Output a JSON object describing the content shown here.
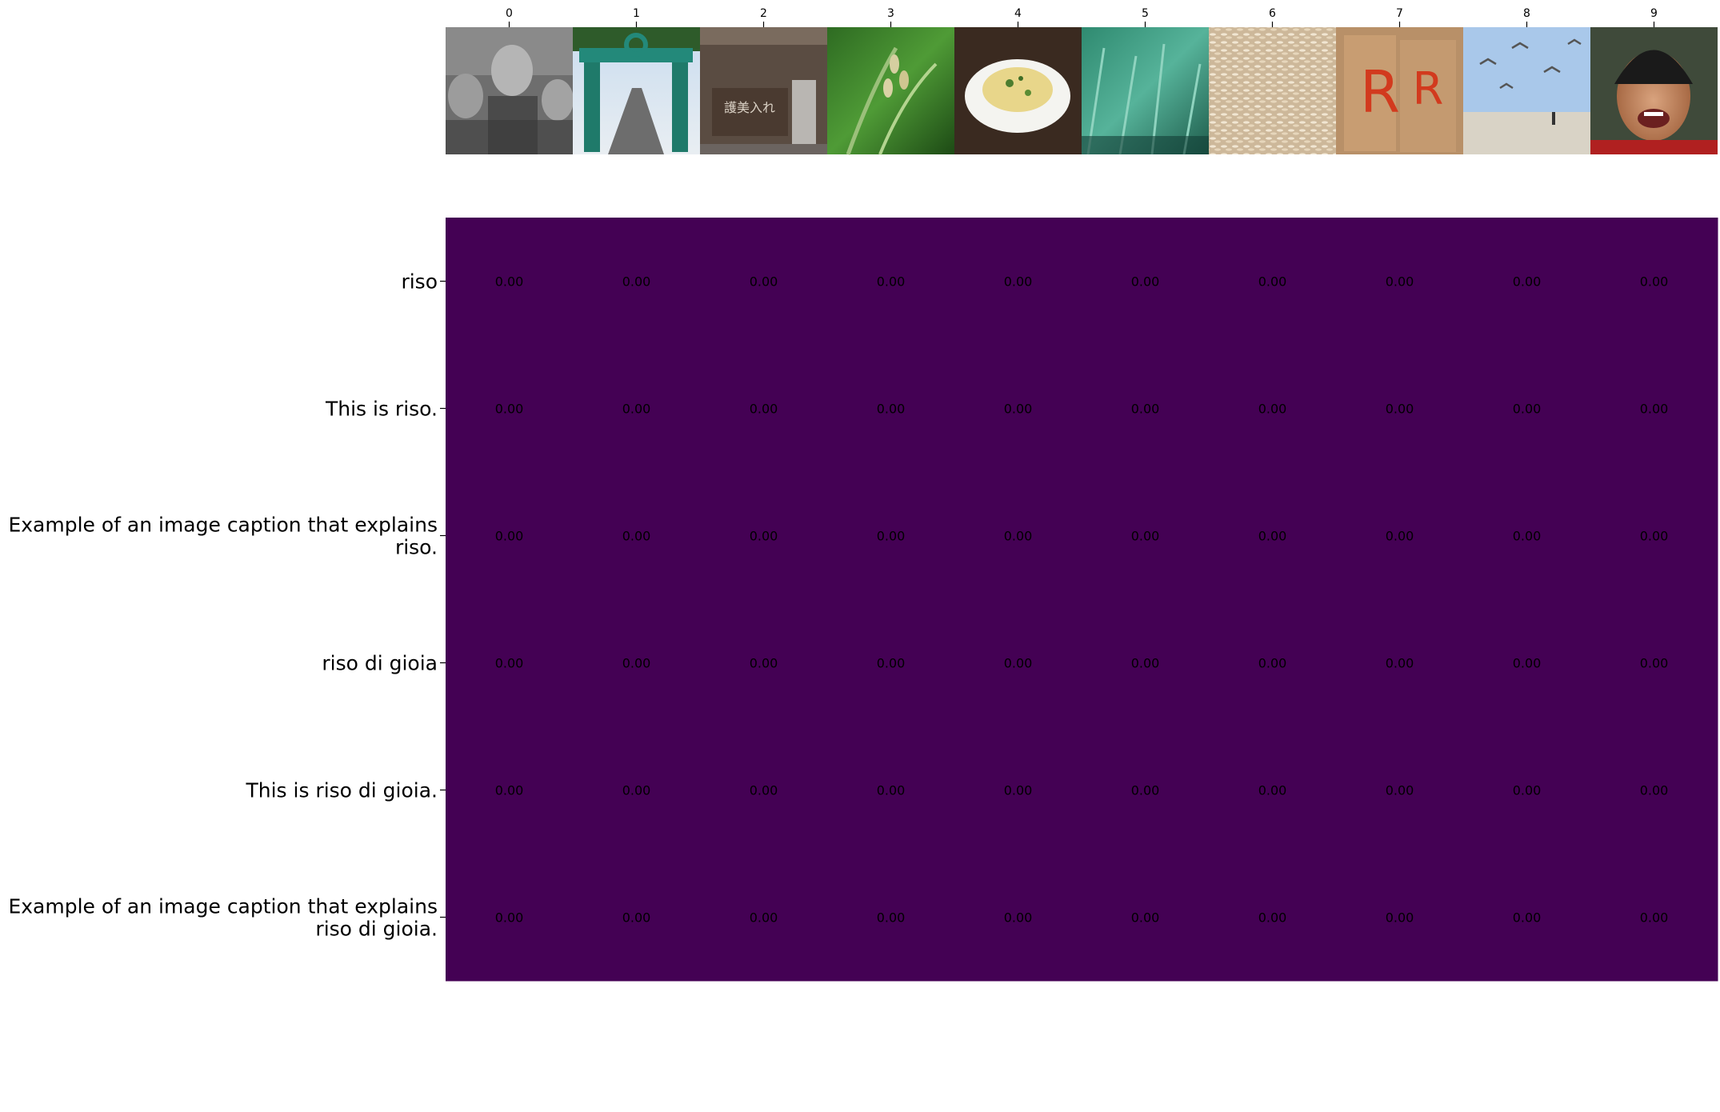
{
  "chart_data": {
    "type": "heatmap",
    "title": "",
    "xlabel": "",
    "ylabel": "",
    "colormap": "viridis",
    "vmin": 0,
    "vmax": 1,
    "x_categories": [
      "0",
      "1",
      "2",
      "3",
      "4",
      "5",
      "6",
      "7",
      "8",
      "9"
    ],
    "y_categories": [
      "riso",
      "This is riso.",
      "Example of an image caption that explains riso.",
      "riso di gioia",
      "This is riso di gioia.",
      "Example of an image caption that explains riso di gioia."
    ],
    "values": [
      [
        0,
        0,
        0,
        0,
        0,
        0,
        0,
        0,
        0,
        0
      ],
      [
        0,
        0,
        0,
        0,
        0,
        0,
        0,
        0,
        0,
        0
      ],
      [
        0,
        0,
        0,
        0,
        0,
        0,
        0,
        0,
        0,
        0
      ],
      [
        0,
        0,
        0,
        0,
        0,
        0,
        0,
        0,
        0,
        0
      ],
      [
        0,
        0,
        0,
        0,
        0,
        0,
        0,
        0,
        0,
        0
      ],
      [
        0,
        0,
        0,
        0,
        0,
        0,
        0,
        0,
        0,
        0
      ]
    ],
    "value_format": "0.00",
    "cell_color": "#440154",
    "thumbnails": [
      "black-and-white portrait of mother and children",
      "green archway over a road",
      "wooden sign with japanese text",
      "rice plant grains in grass",
      "bowl of rice dish",
      "green rice field",
      "raw rice grains",
      "wall with red R letters",
      "birds flying over beach",
      "smiling young man in black cap"
    ]
  }
}
